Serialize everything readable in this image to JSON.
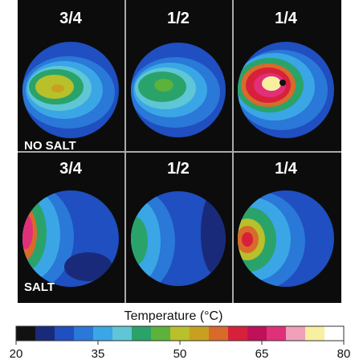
{
  "panels": [
    {
      "label": "3/4"
    },
    {
      "label": "1/2"
    },
    {
      "label": "1/4"
    },
    {
      "label": "3/4"
    },
    {
      "label": "1/2"
    },
    {
      "label": "1/4"
    }
  ],
  "row_labels": [
    "NO SALT",
    "SALT"
  ],
  "colorbar": {
    "title": "Temperature (°C)",
    "range": [
      20,
      80
    ],
    "ticks": [
      20,
      35,
      50,
      65,
      80
    ],
    "colors": [
      "#111111",
      "#1a2a7a",
      "#1f4fc0",
      "#2a78d8",
      "#3aa6e6",
      "#5fc6d6",
      "#2aa36a",
      "#5cb23a",
      "#b8c02a",
      "#c8a020",
      "#d86a2a",
      "#d8203a",
      "#c0105a",
      "#e0307a",
      "#f0a0b8",
      "#f8f0a0",
      "#ffffff"
    ]
  }
}
